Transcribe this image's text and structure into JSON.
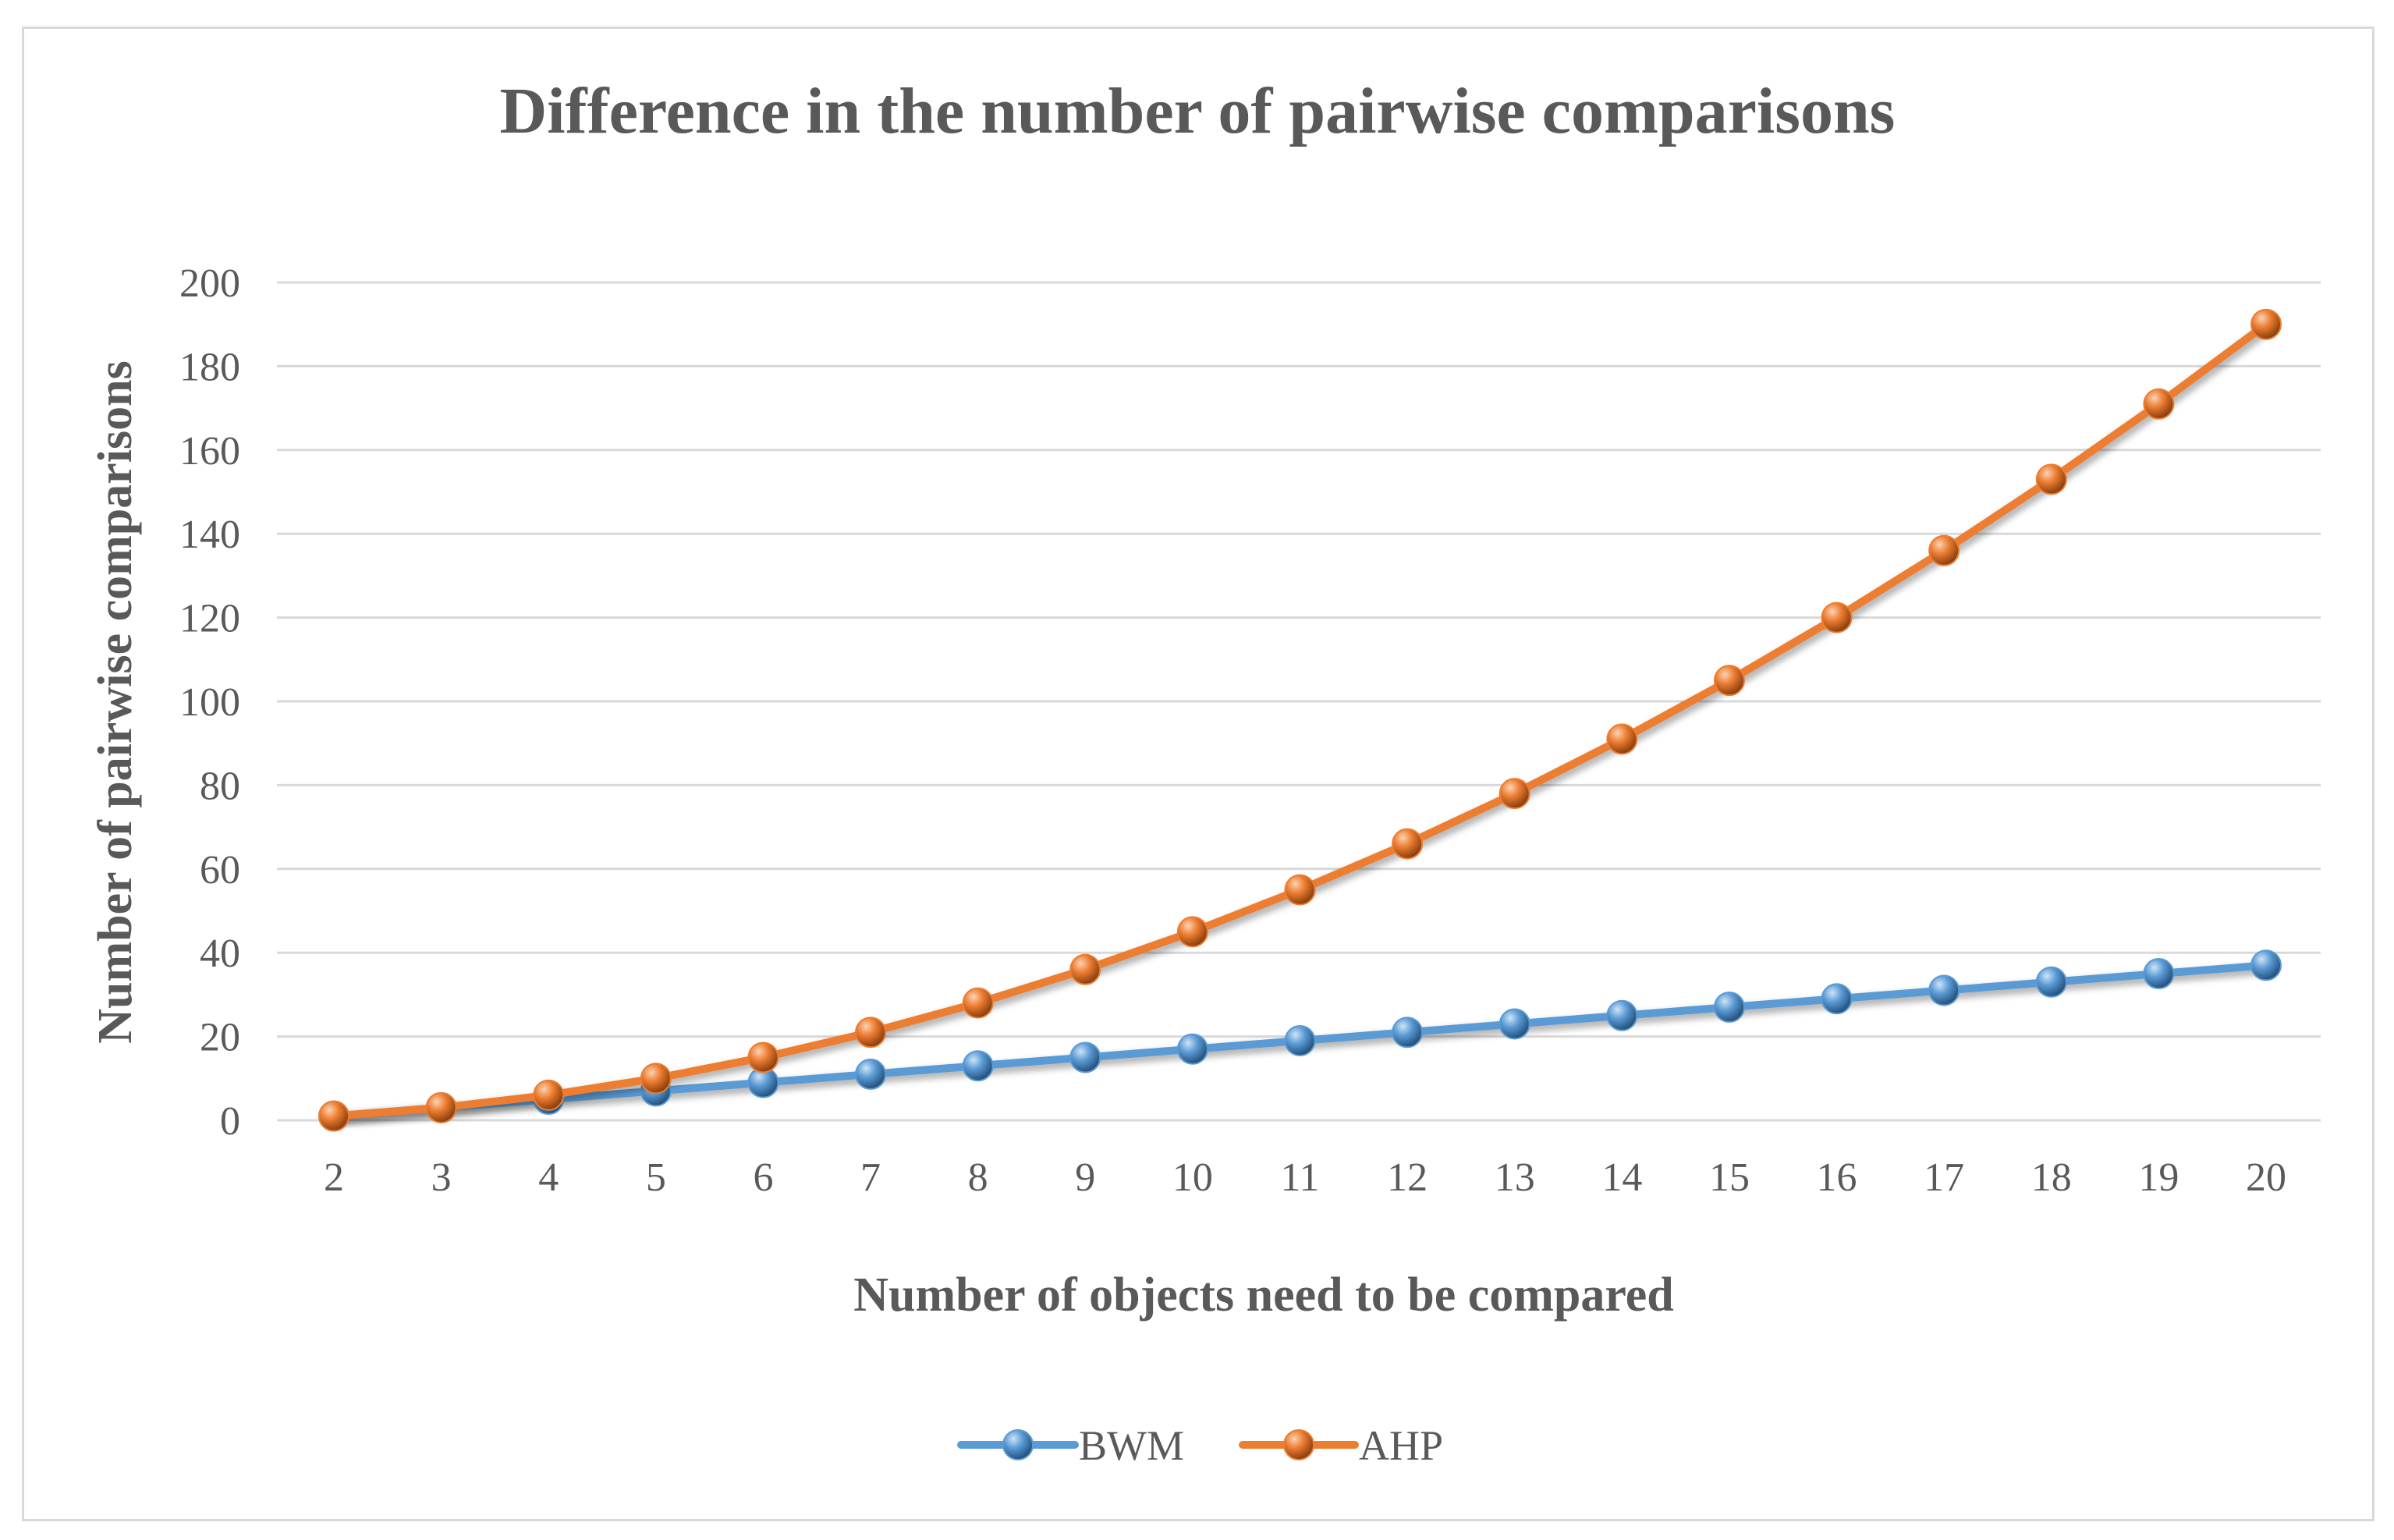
{
  "chart_data": {
    "type": "line",
    "title": "Difference in the number of pairwise comparisons",
    "xlabel": "Number of objects need to be compared",
    "ylabel": "Number of pairwise comparisons",
    "categories": [
      2,
      3,
      4,
      5,
      6,
      7,
      8,
      9,
      10,
      11,
      12,
      13,
      14,
      15,
      16,
      17,
      18,
      19,
      20
    ],
    "ylim": [
      0,
      200
    ],
    "yticks": [
      0,
      20,
      40,
      60,
      80,
      100,
      120,
      140,
      160,
      180,
      200
    ],
    "grid": true,
    "legend_position": "bottom",
    "series": [
      {
        "name": "BWM",
        "color": "#5b9bd5",
        "values": [
          1,
          3,
          5,
          7,
          9,
          11,
          13,
          15,
          17,
          19,
          21,
          23,
          25,
          27,
          29,
          31,
          33,
          35,
          37
        ]
      },
      {
        "name": "AHP",
        "color": "#ed7d31",
        "values": [
          1,
          3,
          6,
          10,
          15,
          21,
          28,
          36,
          45,
          55,
          66,
          78,
          91,
          105,
          120,
          136,
          153,
          171,
          190
        ]
      }
    ]
  }
}
